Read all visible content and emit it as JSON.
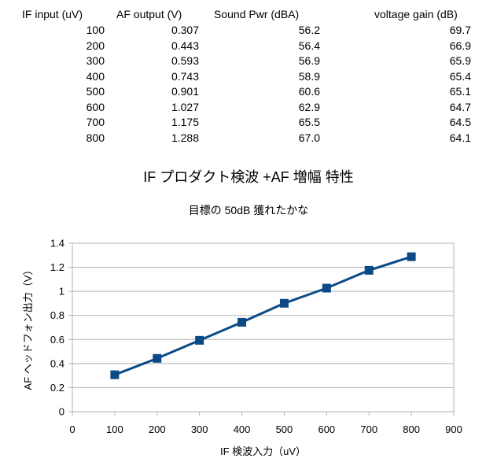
{
  "table": {
    "headers": [
      "IF input (uV)",
      "AF output (V)",
      "Sound Pwr (dBA)",
      "voltage gain (dB)"
    ],
    "rows": [
      [
        "100",
        "0.307",
        "56.2",
        "69.7"
      ],
      [
        "200",
        "0.443",
        "56.4",
        "66.9"
      ],
      [
        "300",
        "0.593",
        "56.9",
        "65.9"
      ],
      [
        "400",
        "0.743",
        "58.9",
        "65.4"
      ],
      [
        "500",
        "0.901",
        "60.6",
        "65.1"
      ],
      [
        "600",
        "1.027",
        "62.9",
        "64.7"
      ],
      [
        "700",
        "1.175",
        "65.5",
        "64.5"
      ],
      [
        "800",
        "1.288",
        "67.0",
        "64.1"
      ]
    ]
  },
  "chart_data": {
    "type": "line",
    "title": "IF プロダクト検波 +AF 増幅 特性",
    "subtitle": "目標の 50dB 獲れたかな",
    "xlabel": "IF 検波入力（uV）",
    "ylabel": "AF ヘッドフォン出力（V）",
    "xlim": [
      0,
      900
    ],
    "ylim": [
      0,
      1.4
    ],
    "x_ticks": [
      "0",
      "100",
      "200",
      "300",
      "400",
      "500",
      "600",
      "700",
      "800",
      "900"
    ],
    "y_ticks": [
      "0",
      "0.2",
      "0.4",
      "0.6",
      "0.8",
      "1",
      "1.2",
      "1.4"
    ],
    "grid": true,
    "legend": "none",
    "series": [
      {
        "x": [
          100,
          200,
          300,
          400,
          500,
          600,
          700,
          800
        ],
        "y": [
          0.307,
          0.443,
          0.593,
          0.743,
          0.901,
          1.027,
          1.175,
          1.288
        ],
        "color": "#0b4a86",
        "marker": "square"
      }
    ]
  }
}
